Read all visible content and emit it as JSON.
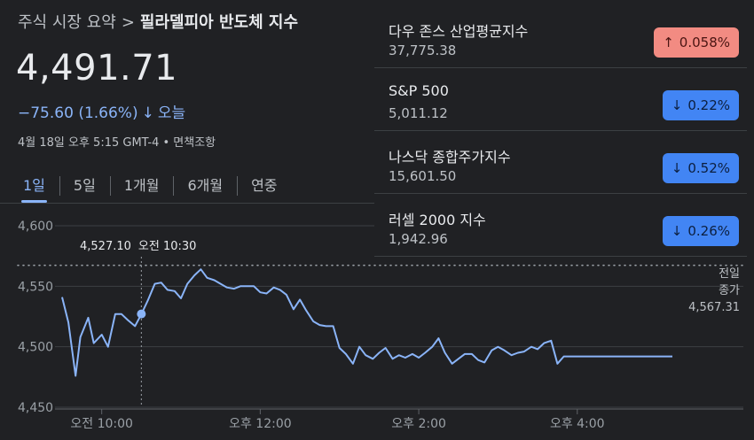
{
  "breadcrumb": {
    "parent": "주식 시장 요약",
    "separator": ">",
    "title": "필라델피아 반도체 지수"
  },
  "quote": {
    "price": "4,491.71",
    "change": "−75.60 (1.66%)",
    "change_arrow": "↓",
    "period": "오늘",
    "timestamp": "4월 18일 오후 5:15 GMT-4 • 면책조항"
  },
  "tabs": [
    {
      "label": "1일",
      "active": true
    },
    {
      "label": "5일"
    },
    {
      "label": "1개월"
    },
    {
      "label": "6개월"
    },
    {
      "label": "연중"
    }
  ],
  "tooltip": {
    "value": "4,527.10",
    "time": "오전 10:30"
  },
  "prev_close": {
    "label1": "전일",
    "label2": "종가",
    "value": "4,567.31"
  },
  "indices": [
    {
      "name": "다우 존스 산업평균지수",
      "value": "37,775.38",
      "change": "0.058%",
      "direction": "up"
    },
    {
      "name": "S&P 500",
      "value": "5,011.12",
      "change": "0.22%",
      "direction": "down"
    },
    {
      "name": "나스닥 종합주가지수",
      "value": "15,601.50",
      "change": "0.52%",
      "direction": "down"
    },
    {
      "name": "러셀 2000 지수",
      "value": "1,942.96",
      "change": "0.26%",
      "direction": "down"
    }
  ],
  "colors": {
    "line": "#8ab4f8",
    "up_badge": "#f28b82",
    "down_badge": "#4285f4",
    "background": "#202124"
  },
  "chart_data": {
    "type": "area",
    "ylim": [
      4450,
      4600
    ],
    "y_ticks": [
      4600,
      4550,
      4500,
      4450
    ],
    "y_tick_labels": [
      "4,600",
      "4,550",
      "4,500",
      "4,450"
    ],
    "x_ticks": [
      10,
      12,
      14,
      16
    ],
    "x_tick_labels": [
      "오전 10:00",
      "오후 12:00",
      "오후 2:00",
      "오후 4:00"
    ],
    "previous_close": 4567.31,
    "highlight": {
      "x": 10.5,
      "y": 4527.1
    },
    "series": [
      {
        "x": [
          9.5,
          9.58,
          9.67,
          9.73,
          9.83,
          9.9,
          10.0,
          10.08,
          10.17,
          10.25,
          10.33,
          10.42,
          10.5,
          10.58,
          10.67,
          10.75,
          10.83,
          10.92,
          11.0,
          11.08,
          11.17,
          11.25,
          11.33,
          11.42,
          11.5,
          11.58,
          11.67,
          11.75,
          11.83,
          11.92,
          12.0,
          12.08,
          12.17,
          12.25,
          12.33,
          12.42,
          12.5,
          12.58,
          12.67,
          12.75,
          12.83,
          12.92,
          13.0,
          13.08,
          13.17,
          13.25,
          13.33,
          13.42,
          13.5,
          13.58,
          13.67,
          13.75,
          13.83,
          13.92,
          14.0,
          14.08,
          14.17,
          14.25,
          14.33,
          14.42,
          14.5,
          14.58,
          14.67,
          14.75,
          14.83,
          14.92,
          15.0,
          15.08,
          15.17,
          15.25,
          15.33,
          15.42,
          15.5,
          15.58,
          15.67,
          15.75,
          15.83,
          15.92,
          16.0,
          16.05,
          16.1,
          16.17,
          16.25,
          16.5,
          16.75,
          17.0,
          17.2
        ],
        "y": [
          4541,
          4520,
          4476,
          4508,
          4524,
          4503,
          4510,
          4500,
          4527,
          4527,
          4522,
          4517,
          4527,
          4538,
          4552,
          4553,
          4547,
          4546,
          4540,
          4552,
          4559,
          4564,
          4557,
          4555,
          4552,
          4549,
          4548,
          4550,
          4550,
          4550,
          4545,
          4544,
          4549,
          4547,
          4543,
          4531,
          4539,
          4530,
          4521,
          4518,
          4517,
          4517,
          4499,
          4494,
          4486,
          4500,
          4493,
          4490,
          4495,
          4499,
          4490,
          4493,
          4491,
          4494,
          4491,
          4495,
          4500,
          4507,
          4495,
          4486,
          4490,
          4494,
          4494,
          4489,
          4487,
          4497,
          4500,
          4497,
          4493,
          4495,
          4496,
          4500,
          4498,
          4503,
          4505,
          4486,
          4492,
          4492,
          4492,
          4492,
          4492,
          4492,
          4492,
          4492,
          4492,
          4492,
          4492
        ],
        "name": ""
      }
    ]
  }
}
